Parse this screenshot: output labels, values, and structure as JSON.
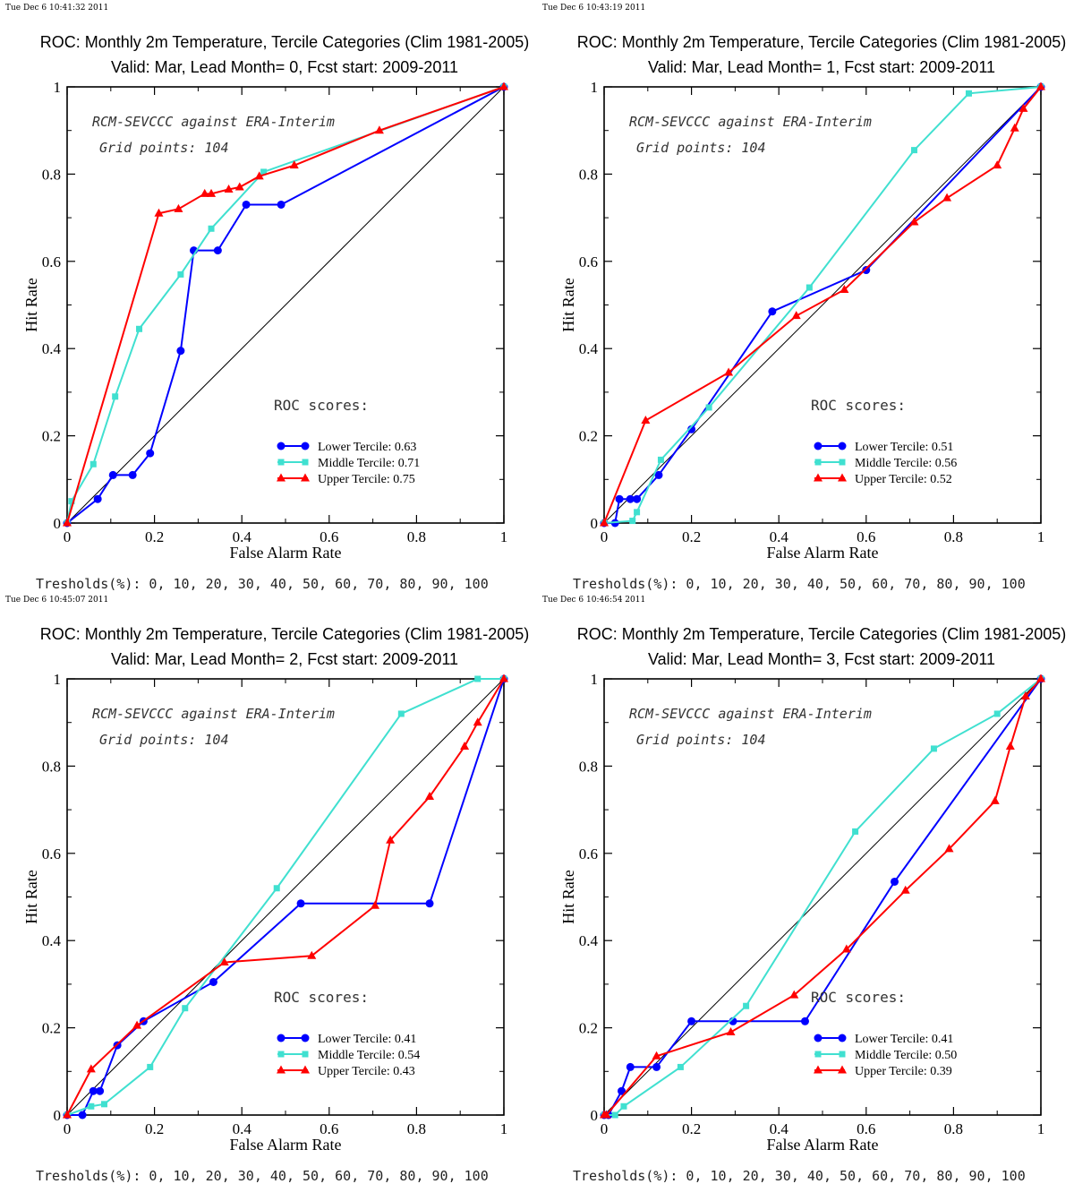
{
  "chart_data": [
    {
      "type": "line",
      "timestamp": "Tue Dec  6 10:41:32 2011",
      "title": "ROC: Monthly 2m Temperature, Tercile Categories (Clim 1981-2005)",
      "subtitle": "Valid: Mar, Lead Month= 0, Fcst start: 2009-2011",
      "xlabel": "False Alarm Rate",
      "ylabel": "Hit Rate",
      "xlim": [
        0,
        1
      ],
      "ylim": [
        0,
        1
      ],
      "xticks": [
        "0",
        "0.2",
        "0.4",
        "0.6",
        "0.8",
        "1"
      ],
      "yticks": [
        "0",
        "0.2",
        "0.4",
        "0.6",
        "0.8",
        "1"
      ],
      "annotation_1": "RCM-SEVCCC against ERA-Interim",
      "annotation_2": "Grid points:  104",
      "scores_title": "ROC scores:",
      "thresholds": "Tresholds(%): 0, 10, 20, 30, 40, 50, 60, 70, 80, 90, 100",
      "diagonal": true,
      "grid": false,
      "legend_position": "bottom-right",
      "series": [
        {
          "name": "Lower Tercile: 0.63",
          "color": "#0000ff",
          "marker": "circle",
          "x": [
            0,
            0.07,
            0.105,
            0.15,
            0.19,
            0.26,
            0.29,
            0.345,
            0.41,
            0.49,
            1
          ],
          "y": [
            0,
            0.055,
            0.11,
            0.11,
            0.16,
            0.395,
            0.625,
            0.625,
            0.73,
            0.73,
            1
          ]
        },
        {
          "name": "Middle Tercile: 0.71",
          "color": "#40e0d0",
          "marker": "square",
          "x": [
            0,
            0.01,
            0.06,
            0.11,
            0.165,
            0.26,
            0.33,
            0.45,
            1
          ],
          "y": [
            0,
            0.05,
            0.135,
            0.29,
            0.445,
            0.57,
            0.675,
            0.805,
            1
          ]
        },
        {
          "name": "Upper Tercile: 0.75",
          "color": "#ff0000",
          "marker": "triangle",
          "x": [
            0,
            0.21,
            0.255,
            0.315,
            0.33,
            0.37,
            0.395,
            0.44,
            0.52,
            0.715,
            1
          ],
          "y": [
            0,
            0.71,
            0.72,
            0.755,
            0.755,
            0.765,
            0.77,
            0.795,
            0.82,
            0.9,
            1
          ]
        }
      ]
    },
    {
      "type": "line",
      "timestamp": "Tue Dec  6 10:43:19 2011",
      "title": "ROC: Monthly 2m Temperature, Tercile Categories (Clim 1981-2005)",
      "subtitle": "Valid: Mar, Lead Month= 1, Fcst start: 2009-2011",
      "xlabel": "False Alarm Rate",
      "ylabel": "Hit Rate",
      "xlim": [
        0,
        1
      ],
      "ylim": [
        0,
        1
      ],
      "xticks": [
        "0",
        "0.2",
        "0.4",
        "0.6",
        "0.8",
        "1"
      ],
      "yticks": [
        "0",
        "0.2",
        "0.4",
        "0.6",
        "0.8",
        "1"
      ],
      "annotation_1": "RCM-SEVCCC against ERA-Interim",
      "annotation_2": "Grid points:  104",
      "scores_title": "ROC scores:",
      "thresholds": "Tresholds(%): 0, 10, 20, 30, 40, 50, 60, 70, 80, 90, 100",
      "diagonal": true,
      "grid": false,
      "legend_position": "bottom-right",
      "series": [
        {
          "name": "Lower Tercile: 0.51",
          "color": "#0000ff",
          "marker": "circle",
          "x": [
            0,
            0.025,
            0.035,
            0.06,
            0.075,
            0.125,
            0.2,
            0.385,
            0.6,
            1
          ],
          "y": [
            0,
            0,
            0.055,
            0.055,
            0.055,
            0.11,
            0.215,
            0.485,
            0.58,
            1
          ]
        },
        {
          "name": "Middle Tercile: 0.56",
          "color": "#40e0d0",
          "marker": "square",
          "x": [
            0,
            0.065,
            0.075,
            0.13,
            0.24,
            0.47,
            0.71,
            0.835,
            1
          ],
          "y": [
            0,
            0.005,
            0.025,
            0.145,
            0.265,
            0.54,
            0.855,
            0.985,
            1
          ]
        },
        {
          "name": "Upper Tercile: 0.52",
          "color": "#ff0000",
          "marker": "triangle",
          "x": [
            0,
            0.095,
            0.285,
            0.44,
            0.55,
            0.71,
            0.785,
            0.9,
            0.94,
            0.96,
            1
          ],
          "y": [
            0,
            0.235,
            0.345,
            0.475,
            0.535,
            0.69,
            0.745,
            0.82,
            0.905,
            0.95,
            1
          ]
        }
      ]
    },
    {
      "type": "line",
      "timestamp": "Tue Dec  6 10:45:07 2011",
      "title": "ROC: Monthly 2m Temperature, Tercile Categories (Clim 1981-2005)",
      "subtitle": "Valid: Mar, Lead Month= 2, Fcst start: 2009-2011",
      "xlabel": "False Alarm Rate",
      "ylabel": "Hit Rate",
      "xlim": [
        0,
        1
      ],
      "ylim": [
        0,
        1
      ],
      "xticks": [
        "0",
        "0.2",
        "0.4",
        "0.6",
        "0.8",
        "1"
      ],
      "yticks": [
        "0",
        "0.2",
        "0.4",
        "0.6",
        "0.8",
        "1"
      ],
      "annotation_1": "RCM-SEVCCC against ERA-Interim",
      "annotation_2": "Grid points:  104",
      "scores_title": "ROC scores:",
      "thresholds": "Tresholds(%): 0, 10, 20, 30, 40, 50, 60, 70, 80, 90, 100",
      "diagonal": true,
      "grid": false,
      "legend_position": "bottom-right",
      "series": [
        {
          "name": "Lower Tercile: 0.41",
          "color": "#0000ff",
          "marker": "circle",
          "x": [
            0,
            0.035,
            0.06,
            0.075,
            0.115,
            0.175,
            0.335,
            0.535,
            0.83,
            1
          ],
          "y": [
            0,
            0,
            0.055,
            0.055,
            0.16,
            0.215,
            0.305,
            0.485,
            0.485,
            1
          ]
        },
        {
          "name": "Middle Tercile: 0.54",
          "color": "#40e0d0",
          "marker": "square",
          "x": [
            0,
            0.055,
            0.085,
            0.19,
            0.27,
            0.48,
            0.765,
            0.94,
            1
          ],
          "y": [
            0,
            0.02,
            0.025,
            0.11,
            0.245,
            0.52,
            0.92,
            1,
            1
          ]
        },
        {
          "name": "Upper Tercile: 0.43",
          "color": "#ff0000",
          "marker": "triangle",
          "x": [
            0,
            0.055,
            0.16,
            0.36,
            0.56,
            0.705,
            0.74,
            0.83,
            0.91,
            0.94,
            1
          ],
          "y": [
            0,
            0.105,
            0.205,
            0.35,
            0.365,
            0.48,
            0.63,
            0.73,
            0.845,
            0.9,
            1
          ]
        }
      ]
    },
    {
      "type": "line",
      "timestamp": "Tue Dec  6 10:46:54 2011",
      "title": "ROC: Monthly 2m Temperature, Tercile Categories (Clim 1981-2005)",
      "subtitle": "Valid: Mar, Lead Month= 3, Fcst start: 2009-2011",
      "xlabel": "False Alarm Rate",
      "ylabel": "Hit Rate",
      "xlim": [
        0,
        1
      ],
      "ylim": [
        0,
        1
      ],
      "xticks": [
        "0",
        "0.2",
        "0.4",
        "0.6",
        "0.8",
        "1"
      ],
      "yticks": [
        "0",
        "0.2",
        "0.4",
        "0.6",
        "0.8",
        "1"
      ],
      "annotation_1": "RCM-SEVCCC against ERA-Interim",
      "annotation_2": "Grid points:  104",
      "scores_title": "ROC scores:",
      "thresholds": "Tresholds(%): 0, 10, 20, 30, 40, 50, 60, 70, 80, 90, 100",
      "diagonal": true,
      "grid": false,
      "legend_position": "bottom-right",
      "series": [
        {
          "name": "Lower Tercile: 0.41",
          "color": "#0000ff",
          "marker": "circle",
          "x": [
            0,
            0.01,
            0.04,
            0.06,
            0.12,
            0.2,
            0.295,
            0.46,
            0.665,
            1
          ],
          "y": [
            0,
            0,
            0.055,
            0.11,
            0.11,
            0.215,
            0.215,
            0.215,
            0.535,
            1
          ]
        },
        {
          "name": "Middle Tercile: 0.50",
          "color": "#40e0d0",
          "marker": "square",
          "x": [
            0,
            0.025,
            0.045,
            0.175,
            0.325,
            0.575,
            0.755,
            0.9,
            1
          ],
          "y": [
            0,
            0,
            0.02,
            0.11,
            0.25,
            0.65,
            0.84,
            0.92,
            1
          ]
        },
        {
          "name": "Upper Tercile: 0.39",
          "color": "#ff0000",
          "marker": "triangle",
          "x": [
            0,
            0.005,
            0.12,
            0.29,
            0.435,
            0.555,
            0.69,
            0.79,
            0.895,
            0.93,
            0.965,
            1
          ],
          "y": [
            0,
            0,
            0.135,
            0.19,
            0.275,
            0.38,
            0.515,
            0.61,
            0.72,
            0.845,
            0.96,
            1
          ]
        }
      ]
    }
  ]
}
